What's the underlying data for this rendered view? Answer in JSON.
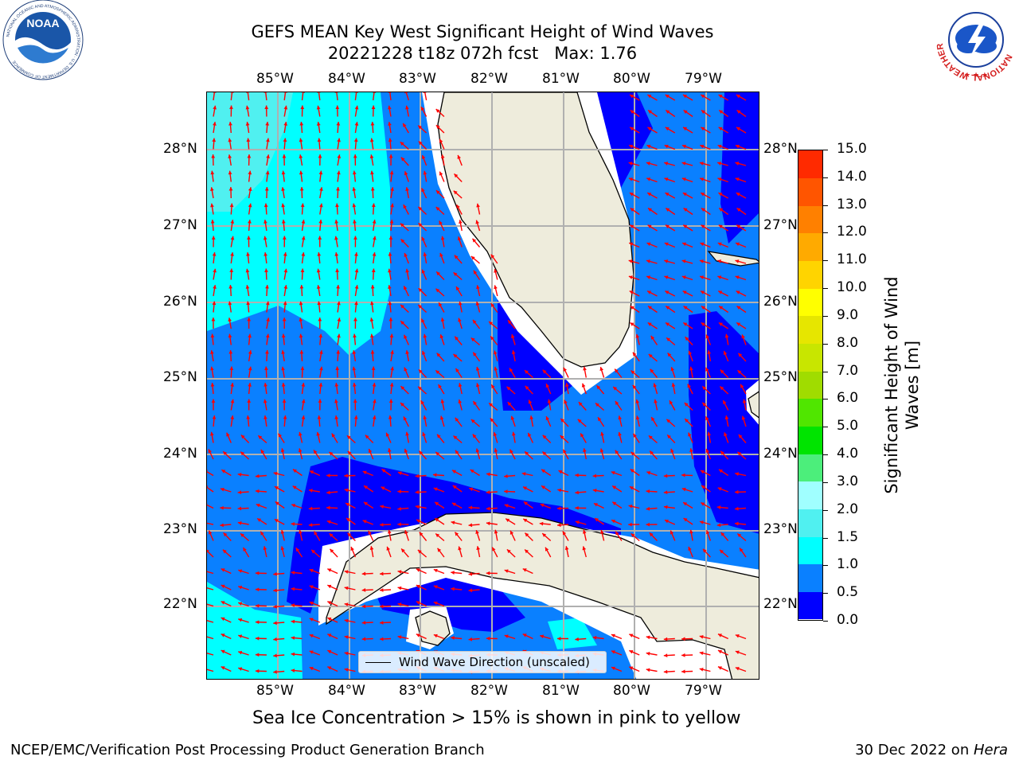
{
  "header": {
    "title_line1": "GEFS MEAN Key West Significant Height of Wind Waves",
    "title_line2": "20221228 t18z 072h fcst   Max: 1.76",
    "logo_left_text": "NOAA",
    "logo_left_ring_text": "NATIONAL OCEANIC AND ATMOSPHERIC ADMINISTRATION · U.S. DEPARTMENT OF COMMERCE",
    "logo_right_ring_text": "NATIONAL WEATHER SERVICE"
  },
  "map": {
    "lon_labels": [
      "85°W",
      "84°W",
      "83°W",
      "82°W",
      "81°W",
      "80°W",
      "79°W"
    ],
    "lat_labels": [
      "28°N",
      "27°N",
      "26°N",
      "25°N",
      "24°N",
      "23°N",
      "22°N"
    ],
    "legend_label": "Wind Wave Direction (unscaled)",
    "colors": {
      "land": "#eeecdc",
      "lvl0": "#0000ff",
      "lvl1": "#0a80ff",
      "lvl2": "#00ffff",
      "lvl3": "#50f0f0",
      "arrow": "#ff0000",
      "grid": "#b0b0b0"
    }
  },
  "colorbar": {
    "label": "Significant Height of Wind Waves [m]",
    "ticks": [
      "0.0",
      "0.5",
      "1.0",
      "1.5",
      "2.0",
      "3.0",
      "4.0",
      "5.0",
      "6.0",
      "7.0",
      "8.0",
      "9.0",
      "10.0",
      "11.0",
      "12.0",
      "13.0",
      "14.0",
      "15.0"
    ],
    "colors": [
      "#0000ff",
      "#0a80ff",
      "#00ffff",
      "#50f0f0",
      "#a0ffff",
      "#4cee7b",
      "#00e400",
      "#50e600",
      "#a0dc00",
      "#c8e600",
      "#e6e600",
      "#ffff00",
      "#ffd400",
      "#ffaa00",
      "#ff8000",
      "#ff5500",
      "#ff2a00"
    ]
  },
  "footer": {
    "caption": "Sea Ice Concentration > 15% is shown in pink to yellow",
    "left": "NCEP/EMC/Verification Post Processing Product Generation Branch",
    "right_prefix": "30 Dec 2022 on ",
    "right_host": "Hera"
  }
}
